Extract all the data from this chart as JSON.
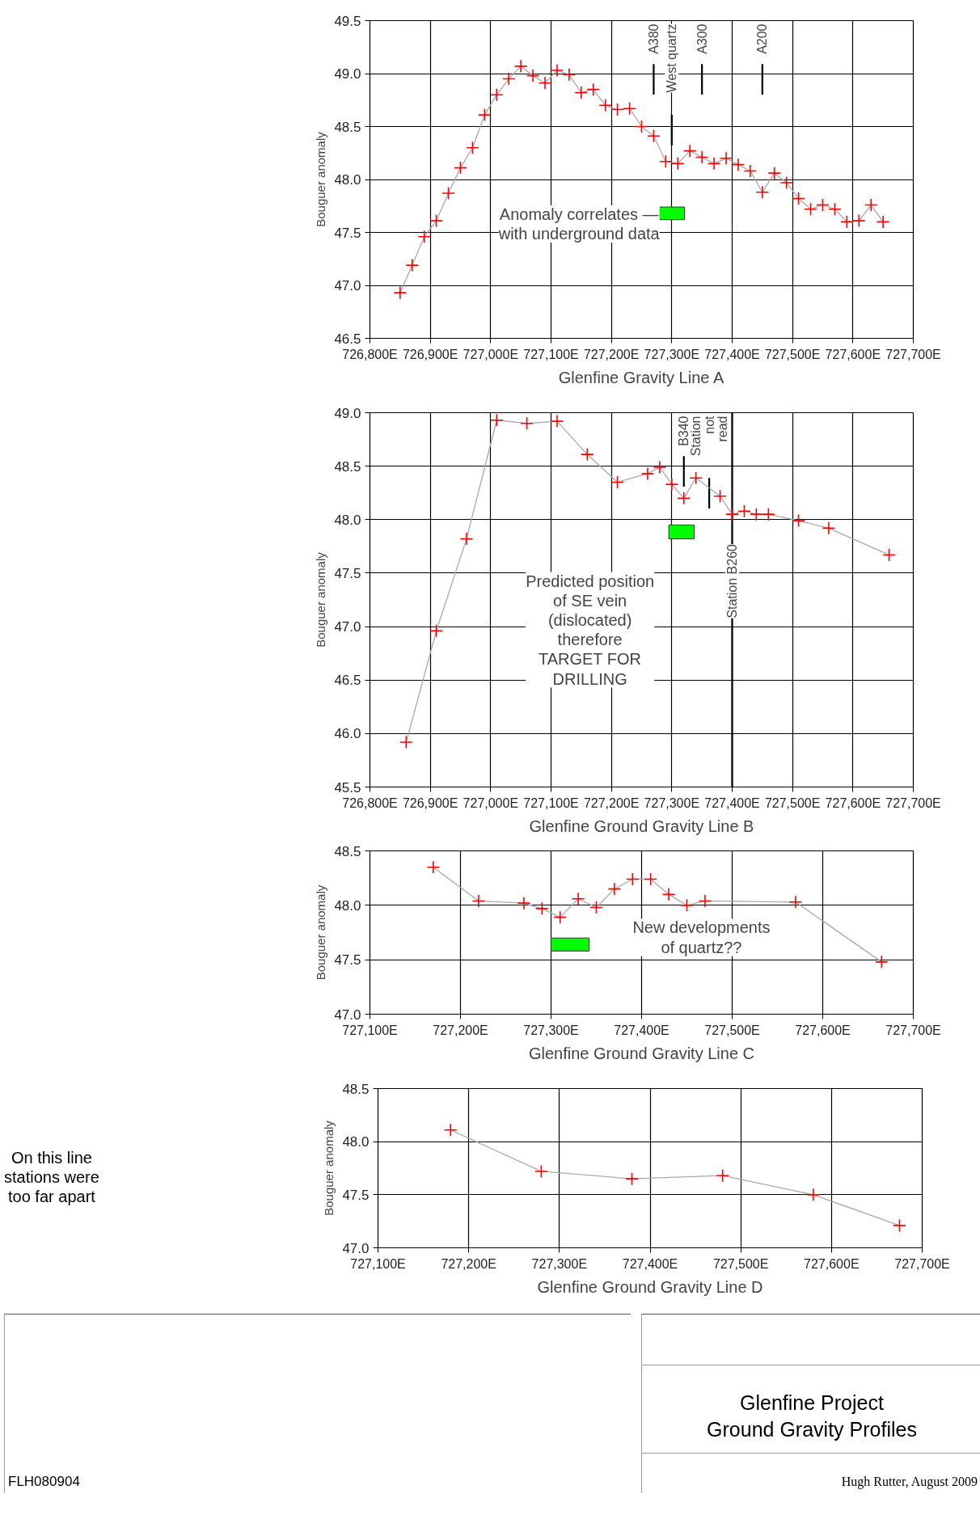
{
  "chart_data": [
    {
      "type": "line",
      "xlabel": "Glenfine Gravity Line A",
      "ylabel": "Bouguer anomaly",
      "grid": true,
      "marker": "cross",
      "line_style": "solid",
      "xlim": [
        726800,
        727700
      ],
      "ylim": [
        46.5,
        49.5
      ],
      "xticks": [
        {
          "value": 726800,
          "label": "726,800E"
        },
        {
          "value": 726900,
          "label": "726,900E"
        },
        {
          "value": 727000,
          "label": "727,000E"
        },
        {
          "value": 727100,
          "label": "727,100E"
        },
        {
          "value": 727200,
          "label": "727,200E"
        },
        {
          "value": 727300,
          "label": "727,300E"
        },
        {
          "value": 727400,
          "label": "727,400E"
        },
        {
          "value": 727500,
          "label": "727,500E"
        },
        {
          "value": 727600,
          "label": "727,600E"
        },
        {
          "value": 727700,
          "label": "727,700E"
        }
      ],
      "yticks": [
        {
          "value": 46.5,
          "label": "46.5"
        },
        {
          "value": 47,
          "label": "47.0"
        },
        {
          "value": 47.5,
          "label": "47.5"
        },
        {
          "value": 48,
          "label": "48.0"
        },
        {
          "value": 48.5,
          "label": "48.5"
        },
        {
          "value": 49,
          "label": "49.0"
        },
        {
          "value": 49.5,
          "label": "49.5"
        }
      ],
      "series": [
        {
          "color": "#ff0000",
          "x": [
            726850,
            726870,
            726890,
            726910,
            726930,
            726950,
            726970,
            726990,
            727010,
            727030,
            727050,
            727070,
            727090,
            727110,
            727130,
            727150,
            727170,
            727190,
            727210,
            727230,
            727250,
            727270,
            727290,
            727310,
            727330,
            727350,
            727370,
            727390,
            727410,
            727430,
            727450,
            727470,
            727490,
            727510,
            727530,
            727550,
            727570,
            727590,
            727610,
            727630,
            727650
          ],
          "values": [
            46.93,
            47.19,
            47.46,
            47.61,
            47.87,
            48.11,
            48.3,
            48.61,
            48.8,
            48.95,
            49.07,
            48.98,
            48.91,
            49.03,
            48.99,
            48.82,
            48.85,
            48.7,
            48.66,
            48.67,
            48.5,
            48.41,
            48.17,
            48.15,
            48.27,
            48.21,
            48.15,
            48.2,
            48.14,
            48.08,
            47.88,
            48.06,
            47.97,
            47.82,
            47.72,
            47.76,
            47.72,
            47.6,
            47.61,
            47.76,
            47.6
          ]
        },
        {
          "type": "bar",
          "color": "#00ff00",
          "x": [
            727300
          ],
          "base": [
            47.62
          ],
          "values": [
            0.12
          ]
        }
      ],
      "ref_lines": [
        {
          "axis": "x",
          "value": 727270,
          "label": "A380"
        },
        {
          "axis": "x",
          "value": 727300,
          "label": "West quartz"
        },
        {
          "axis": "x",
          "value": 727350,
          "label": "A300"
        },
        {
          "axis": "x",
          "value": 727450,
          "label": "A200"
        }
      ],
      "annotations": [
        "Anomaly correlates —\nwith underground data"
      ]
    },
    {
      "type": "line",
      "xlabel": "Glenfine Ground Gravity Line B",
      "ylabel": "Bouguer anomaly",
      "grid": true,
      "marker": "cross",
      "line_style": "solid",
      "xlim": [
        726800,
        727700
      ],
      "ylim": [
        45.5,
        49
      ],
      "xticks": [
        {
          "value": 726800,
          "label": "726,800E"
        },
        {
          "value": 726900,
          "label": "726,900E"
        },
        {
          "value": 727000,
          "label": "727,000E"
        },
        {
          "value": 727100,
          "label": "727,100E"
        },
        {
          "value": 727200,
          "label": "727,200E"
        },
        {
          "value": 727300,
          "label": "727,300E"
        },
        {
          "value": 727400,
          "label": "727,400E"
        },
        {
          "value": 727500,
          "label": "727,500E"
        },
        {
          "value": 727600,
          "label": "727,600E"
        },
        {
          "value": 727700,
          "label": "727,700E"
        }
      ],
      "yticks": [
        {
          "value": 45.5,
          "label": "45.5"
        },
        {
          "value": 46,
          "label": "46.0"
        },
        {
          "value": 46.5,
          "label": "46.5"
        },
        {
          "value": 47,
          "label": "47.0"
        },
        {
          "value": 47.5,
          "label": "47.5"
        },
        {
          "value": 48,
          "label": "48.0"
        },
        {
          "value": 48.5,
          "label": "48.5"
        },
        {
          "value": 49,
          "label": "49.0"
        }
      ],
      "series": [
        {
          "color": "#ff0000",
          "x": [
            726860,
            726910,
            726960,
            727010,
            727060,
            727110,
            727160,
            727210,
            727260,
            727280,
            727300,
            727320,
            727340,
            727380,
            727400,
            727420,
            727440,
            727460,
            727510,
            727560,
            727660
          ],
          "values": [
            45.92,
            46.96,
            47.82,
            48.93,
            48.9,
            48.92,
            48.61,
            48.35,
            48.43,
            48.49,
            48.33,
            48.2,
            48.39,
            48.22,
            48.05,
            48.08,
            48.05,
            48.05,
            47.99,
            47.92,
            47.67
          ]
        },
        {
          "type": "bar",
          "color": "#00ff00",
          "x": [
            727316
          ],
          "base": [
            47.82
          ],
          "values": [
            0.13
          ]
        }
      ],
      "ref_lines": [
        {
          "axis": "x",
          "value": 727320,
          "label": "B340"
        },
        {
          "axis": "x",
          "value": 727362,
          "label": "Station\nnot\nread"
        },
        {
          "axis": "x",
          "value": 727400,
          "label": "Station B260"
        }
      ],
      "annotations": [
        "Predicted position\nof SE vein\n(dislocated)\ntherefore\nTARGET FOR\nDRILLING"
      ]
    },
    {
      "type": "line",
      "xlabel": "Glenfine Ground Gravity Line C",
      "ylabel": "Bouguer anomaly",
      "grid": true,
      "marker": "cross",
      "line_style": "solid",
      "xlim": [
        727100,
        727700
      ],
      "ylim": [
        47,
        48.5
      ],
      "xticks": [
        {
          "value": 727100,
          "label": "727,100E"
        },
        {
          "value": 727200,
          "label": "727,200E"
        },
        {
          "value": 727300,
          "label": "727,300E"
        },
        {
          "value": 727400,
          "label": "727,400E"
        },
        {
          "value": 727500,
          "label": "727,500E"
        },
        {
          "value": 727600,
          "label": "727,600E"
        },
        {
          "value": 727700,
          "label": "727,700E"
        }
      ],
      "yticks": [
        {
          "value": 47,
          "label": "47.0"
        },
        {
          "value": 47.5,
          "label": "47.5"
        },
        {
          "value": 48,
          "label": "48.0"
        },
        {
          "value": 48.5,
          "label": "48.5"
        }
      ],
      "series": [
        {
          "color": "#ff0000",
          "x": [
            727170,
            727220,
            727270,
            727290,
            727310,
            727330,
            727350,
            727370,
            727390,
            727410,
            727430,
            727450,
            727470,
            727570,
            727665
          ],
          "values": [
            48.35,
            48.04,
            48.02,
            47.97,
            47.89,
            48.06,
            47.98,
            48.15,
            48.24,
            48.24,
            48.1,
            48.0,
            48.04,
            48.03,
            47.48
          ]
        },
        {
          "type": "bar",
          "color": "#00ff00",
          "x": [
            727321
          ],
          "base": [
            47.58
          ],
          "values": [
            0.12
          ]
        }
      ],
      "annotations": [
        "New developments\nof quartz??"
      ]
    },
    {
      "type": "line",
      "xlabel": "Glenfine Ground Gravity Line D",
      "ylabel": "Bouguer anomaly",
      "grid": true,
      "marker": "cross",
      "line_style": "solid",
      "xlim": [
        727100,
        727700
      ],
      "ylim": [
        47,
        48.5
      ],
      "xticks": [
        {
          "value": 727100,
          "label": "727,100E"
        },
        {
          "value": 727200,
          "label": "727,200E"
        },
        {
          "value": 727300,
          "label": "727,300E"
        },
        {
          "value": 727400,
          "label": "727,400E"
        },
        {
          "value": 727500,
          "label": "727,500E"
        },
        {
          "value": 727600,
          "label": "727,600E"
        },
        {
          "value": 727700,
          "label": "727,700E"
        }
      ],
      "yticks": [
        {
          "value": 47,
          "label": "47.0"
        },
        {
          "value": 47.5,
          "label": "47.5"
        },
        {
          "value": 48,
          "label": "48.0"
        },
        {
          "value": 48.5,
          "label": "48.5"
        }
      ],
      "series": [
        {
          "color": "#ff0000",
          "x": [
            727180,
            727280,
            727380,
            727480,
            727580,
            727675
          ],
          "values": [
            48.11,
            47.72,
            47.65,
            47.68,
            47.5,
            47.21
          ]
        }
      ],
      "annotations": [
        "On this line\nstations were\ntoo far apart",
        "Glenfine Project\nGround Gravity Profiles",
        "FLH080904",
        "Hugh Rutter, August 2009"
      ]
    }
  ]
}
